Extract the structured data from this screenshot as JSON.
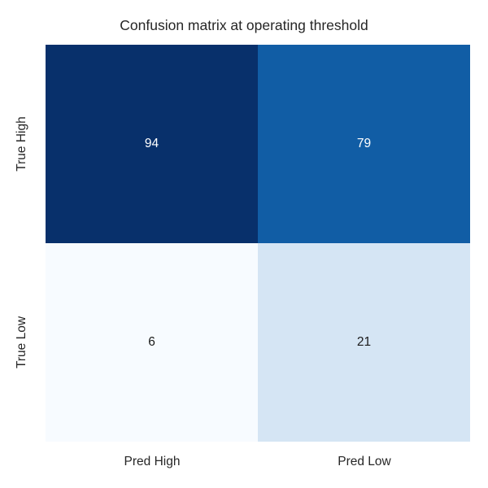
{
  "chart_data": {
    "type": "heatmap",
    "title": "Confusion matrix at operating threshold",
    "rows": [
      "True High",
      "True Low"
    ],
    "columns": [
      "Pred High",
      "Pred Low"
    ],
    "values": [
      [
        94,
        79
      ],
      [
        6,
        21
      ]
    ],
    "colormap": "Blues",
    "colorbar": false,
    "grid": false,
    "annotated": true,
    "cells": [
      {
        "row": "True High",
        "col": "Pred High",
        "value": 94,
        "bg": "#08306b",
        "fg": "#ffffff"
      },
      {
        "row": "True High",
        "col": "Pred Low",
        "value": 79,
        "bg": "#115da5",
        "fg": "#ffffff"
      },
      {
        "row": "True Low",
        "col": "Pred High",
        "value": 6,
        "bg": "#f7fbff",
        "fg": "#1a1a1a"
      },
      {
        "row": "True Low",
        "col": "Pred Low",
        "value": 21,
        "bg": "#d5e5f4",
        "fg": "#1a1a1a"
      }
    ],
    "text_color": "#262626"
  }
}
